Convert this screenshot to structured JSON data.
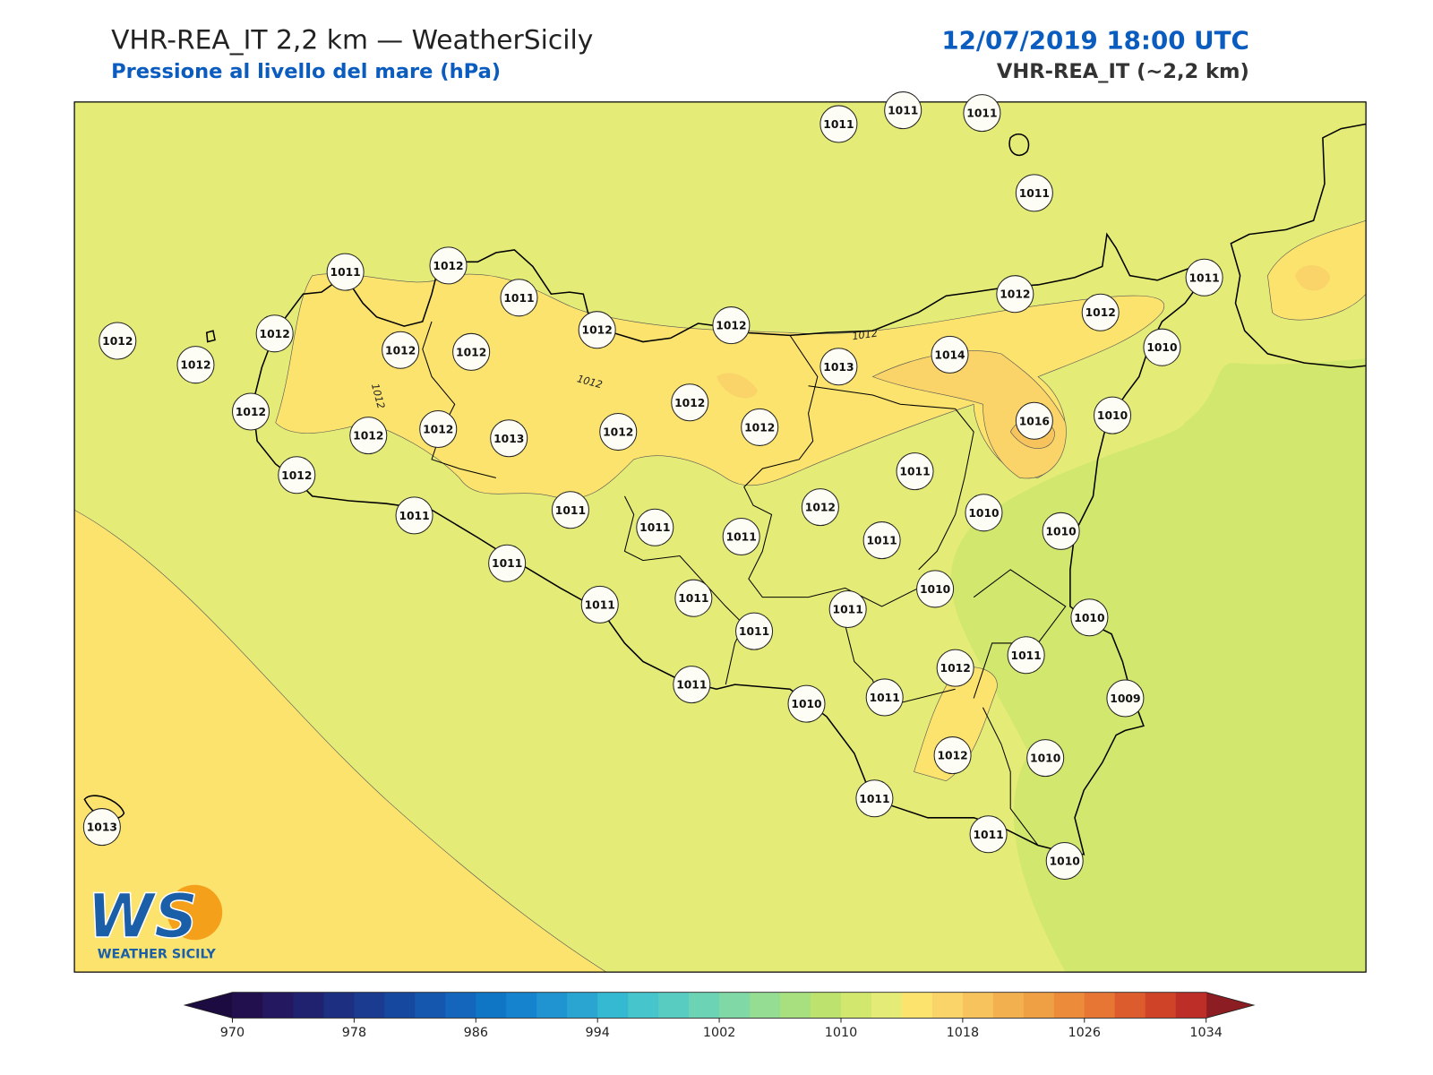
{
  "header": {
    "title": "VHR-REA_IT 2,2 km — WeatherSicily",
    "subtitle": "Pressione al livello del mare (hPa)",
    "date": "12/07/2019 18:00 UTC",
    "model": "VHR-REA_IT (~2,2 km)"
  },
  "map": {
    "stations": [
      1011,
      1011,
      1011,
      1011,
      1011,
      1012,
      1011,
      1012,
      1012,
      1012,
      1012,
      1012,
      1012,
      1012,
      1012,
      1012,
      1011,
      1010,
      1013,
      1014,
      1012,
      1012,
      1012,
      1012,
      1013,
      1012,
      1012,
      1016,
      1010,
      1012,
      1011,
      1011,
      1011,
      1012,
      1010,
      1010,
      1011,
      1011,
      1011,
      1011,
      1010,
      1011,
      1011,
      1011,
      1010,
      1011,
      1011,
      1012,
      1011,
      1010,
      1011,
      1009,
      1012,
      1010,
      1011,
      1013,
      1011,
      1010
    ],
    "contour_labels": [
      1012,
      1012,
      1012
    ]
  },
  "colorbar": {
    "range": [
      970,
      1034
    ],
    "ticks": [
      970,
      978,
      986,
      994,
      1002,
      1010,
      1018,
      1026,
      1034
    ],
    "colors": [
      "#22104e",
      "#241860",
      "#20226f",
      "#1d2f80",
      "#1a3b8f",
      "#1748a0",
      "#1557ae",
      "#1366bc",
      "#0f76c6",
      "#1583cd",
      "#2094d0",
      "#2aa5d2",
      "#35b8d1",
      "#46c5cc",
      "#59ccc2",
      "#6cd3b5",
      "#7fd8a5",
      "#94dd92",
      "#a8e07f",
      "#bde26d",
      "#d2e76d",
      "#e4ec77",
      "#fbe36e",
      "#fad468",
      "#f6c35c",
      "#f2b04f",
      "#efa044",
      "#ec8c3b",
      "#e77534",
      "#dd5c2e",
      "#cf4429",
      "#bd2e28"
    ],
    "under_color": "#1c0b40",
    "over_color": "#8c1d22"
  },
  "logo": {
    "mark": "WS",
    "name": "WEATHER SICILY"
  }
}
